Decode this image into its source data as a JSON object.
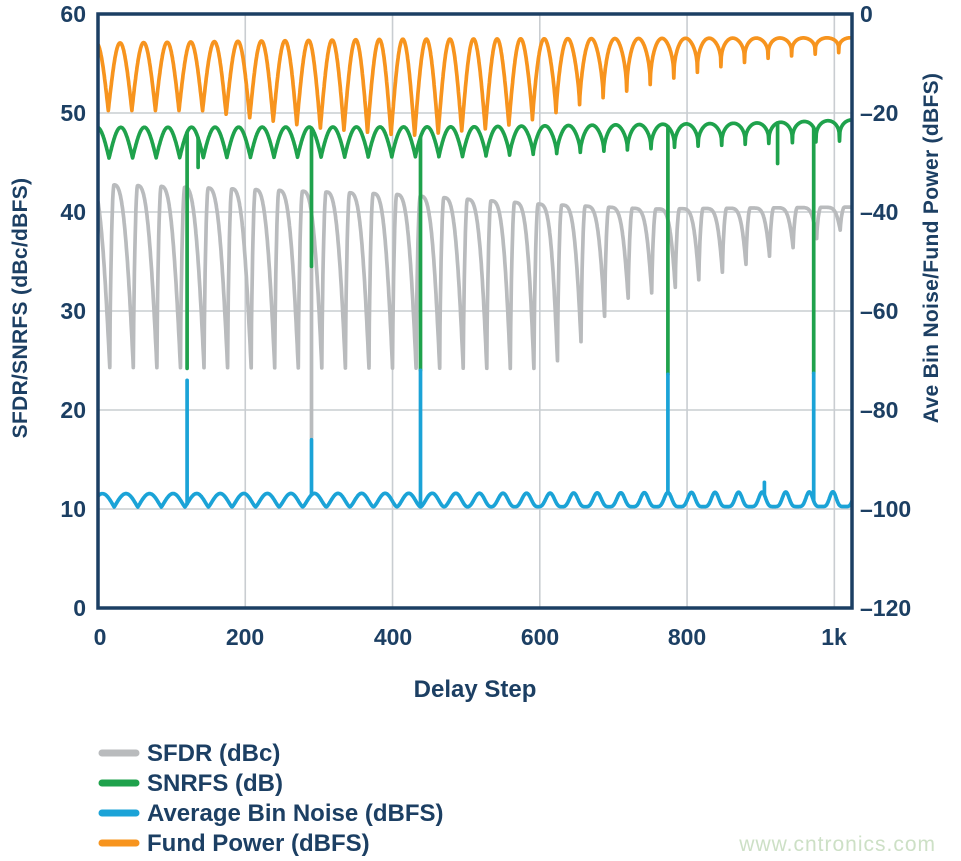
{
  "watermark": "www.cntronics.com",
  "colors": {
    "axis_text": "#1c3f63",
    "grid": "#c9cdd1",
    "sfdr_gray": "#b9bbbd",
    "snrfs_green": "#1fa24c",
    "bin_noise_blue": "#1ba3d7",
    "fund_power_orange": "#f7941e",
    "watermark_green": "#cde0c6"
  },
  "chart_data": {
    "type": "line",
    "title": "",
    "xlabel": "Delay Step",
    "ylabel_left": "SFDR/SNRFS (dBc/dBFS)",
    "ylabel_right": "Ave Bin Noise/Fund Power (dBFS)",
    "x_range": [
      0,
      1024
    ],
    "y_left_range": [
      0,
      60
    ],
    "y_right_range": [
      -120,
      0
    ],
    "grid": true,
    "legend_position": "bottom-left",
    "x_ticks": {
      "labels": [
        "0",
        "200",
        "400",
        "600",
        "800",
        "1k"
      ],
      "values": [
        0,
        200,
        400,
        600,
        800,
        1000
      ]
    },
    "y_left_ticks": {
      "labels": [
        "60",
        "50",
        "40",
        "30",
        "20",
        "10",
        "0"
      ],
      "values": [
        60,
        50,
        40,
        30,
        20,
        10,
        0
      ]
    },
    "y_right_ticks": {
      "labels": [
        "0",
        "–20",
        "–40",
        "–60",
        "–80",
        "–100",
        "–120"
      ],
      "values": [
        0,
        -20,
        -40,
        -60,
        -80,
        -100,
        -120
      ]
    },
    "period": 32,
    "series": [
      {
        "name": "SFDR (dBc)",
        "color": "#b9bbbd",
        "axis": "left",
        "shape": "sawtooth",
        "dip_phase": 16,
        "rise_fraction": 0.18,
        "top_envelope": [
          [
            0,
            42.8
          ],
          [
            200,
            42.3
          ],
          [
            400,
            41.8
          ],
          [
            600,
            40.8
          ],
          [
            750,
            40.3
          ],
          [
            1024,
            40.5
          ]
        ],
        "bottom_envelope": [
          [
            0,
            24.3
          ],
          [
            600,
            24.2
          ],
          [
            640,
            25.5
          ],
          [
            680,
            29.0
          ],
          [
            720,
            31.3
          ],
          [
            780,
            32.3
          ],
          [
            860,
            34.2
          ],
          [
            930,
            36.0
          ],
          [
            1000,
            38.0
          ],
          [
            1024,
            38.5
          ]
        ],
        "sharpness_envelope": [
          [
            0,
            1.35
          ],
          [
            500,
            1.6
          ],
          [
            750,
            2.2
          ],
          [
            1024,
            3.0
          ]
        ],
        "spikes": [
          {
            "x": 290,
            "to": 17.2
          }
        ]
      },
      {
        "name": "SNRFS (dB)",
        "color": "#1fa24c",
        "axis": "left",
        "shape": "scallop",
        "dip_phase": 15,
        "top_envelope": [
          [
            0,
            48.55
          ],
          [
            500,
            48.6
          ],
          [
            700,
            48.8
          ],
          [
            900,
            49.0
          ],
          [
            1024,
            49.3
          ]
        ],
        "bottom_envelope": [
          [
            0,
            45.45
          ],
          [
            500,
            45.6
          ],
          [
            620,
            45.9
          ],
          [
            700,
            46.2
          ],
          [
            800,
            46.6
          ],
          [
            900,
            46.9
          ],
          [
            1024,
            47.2
          ]
        ],
        "sharpness_envelope": [
          [
            0,
            1.0
          ],
          [
            500,
            0.9
          ],
          [
            650,
            0.6
          ],
          [
            800,
            0.4
          ],
          [
            1024,
            0.28
          ]
        ],
        "spikes": [
          {
            "x": 121,
            "to": 24.2
          },
          {
            "x": 136,
            "to": 44.5
          },
          {
            "x": 290,
            "to": 34.5
          },
          {
            "x": 438,
            "to": 24.0
          },
          {
            "x": 774,
            "to": 23.6
          },
          {
            "x": 923,
            "to": 44.9
          },
          {
            "x": 972,
            "to": 23.7
          }
        ]
      },
      {
        "name": "Average Bin Noise (dBFS)",
        "color": "#1ba3d7",
        "axis": "right",
        "shape": "scallop",
        "dip_phase": 22,
        "top_envelope": [
          [
            0,
            -96.9
          ],
          [
            600,
            -96.8
          ],
          [
            1024,
            -96.5
          ]
        ],
        "bottom_envelope": [
          [
            0,
            -99.6
          ],
          [
            1024,
            -99.5
          ]
        ],
        "sharpness_envelope": [
          [
            0,
            1.0
          ],
          [
            450,
            1.6
          ],
          [
            650,
            3.5
          ],
          [
            1024,
            5.5
          ]
        ],
        "spikes": [
          {
            "x": 121,
            "to": -74.0
          },
          {
            "x": 290,
            "to": -86.0
          },
          {
            "x": 438,
            "to": -72.0
          },
          {
            "x": 774,
            "to": -72.8
          },
          {
            "x": 905,
            "to": -94.6
          },
          {
            "x": 972,
            "to": -72.6
          }
        ]
      },
      {
        "name": "Fund Power (dBFS)",
        "color": "#f7941e",
        "axis": "right",
        "shape": "scallop",
        "dip_phase": 14,
        "top_envelope": [
          [
            0,
            -5.9
          ],
          [
            400,
            -5.1
          ],
          [
            1024,
            -4.8
          ]
        ],
        "bottom_envelope": [
          [
            0,
            -19.5
          ],
          [
            140,
            -19.5
          ],
          [
            300,
            -23.0
          ],
          [
            420,
            -24.6
          ],
          [
            540,
            -23.0
          ],
          [
            600,
            -21.0
          ],
          [
            660,
            -18.0
          ],
          [
            720,
            -15.5
          ],
          [
            780,
            -13.0
          ],
          [
            850,
            -10.5
          ],
          [
            920,
            -8.7
          ],
          [
            1024,
            -7.6
          ]
        ],
        "sharpness_envelope": [
          [
            0,
            1.0
          ],
          [
            550,
            1.0
          ],
          [
            700,
            0.55
          ],
          [
            850,
            0.35
          ],
          [
            1024,
            0.25
          ]
        ],
        "spikes": []
      }
    ]
  }
}
